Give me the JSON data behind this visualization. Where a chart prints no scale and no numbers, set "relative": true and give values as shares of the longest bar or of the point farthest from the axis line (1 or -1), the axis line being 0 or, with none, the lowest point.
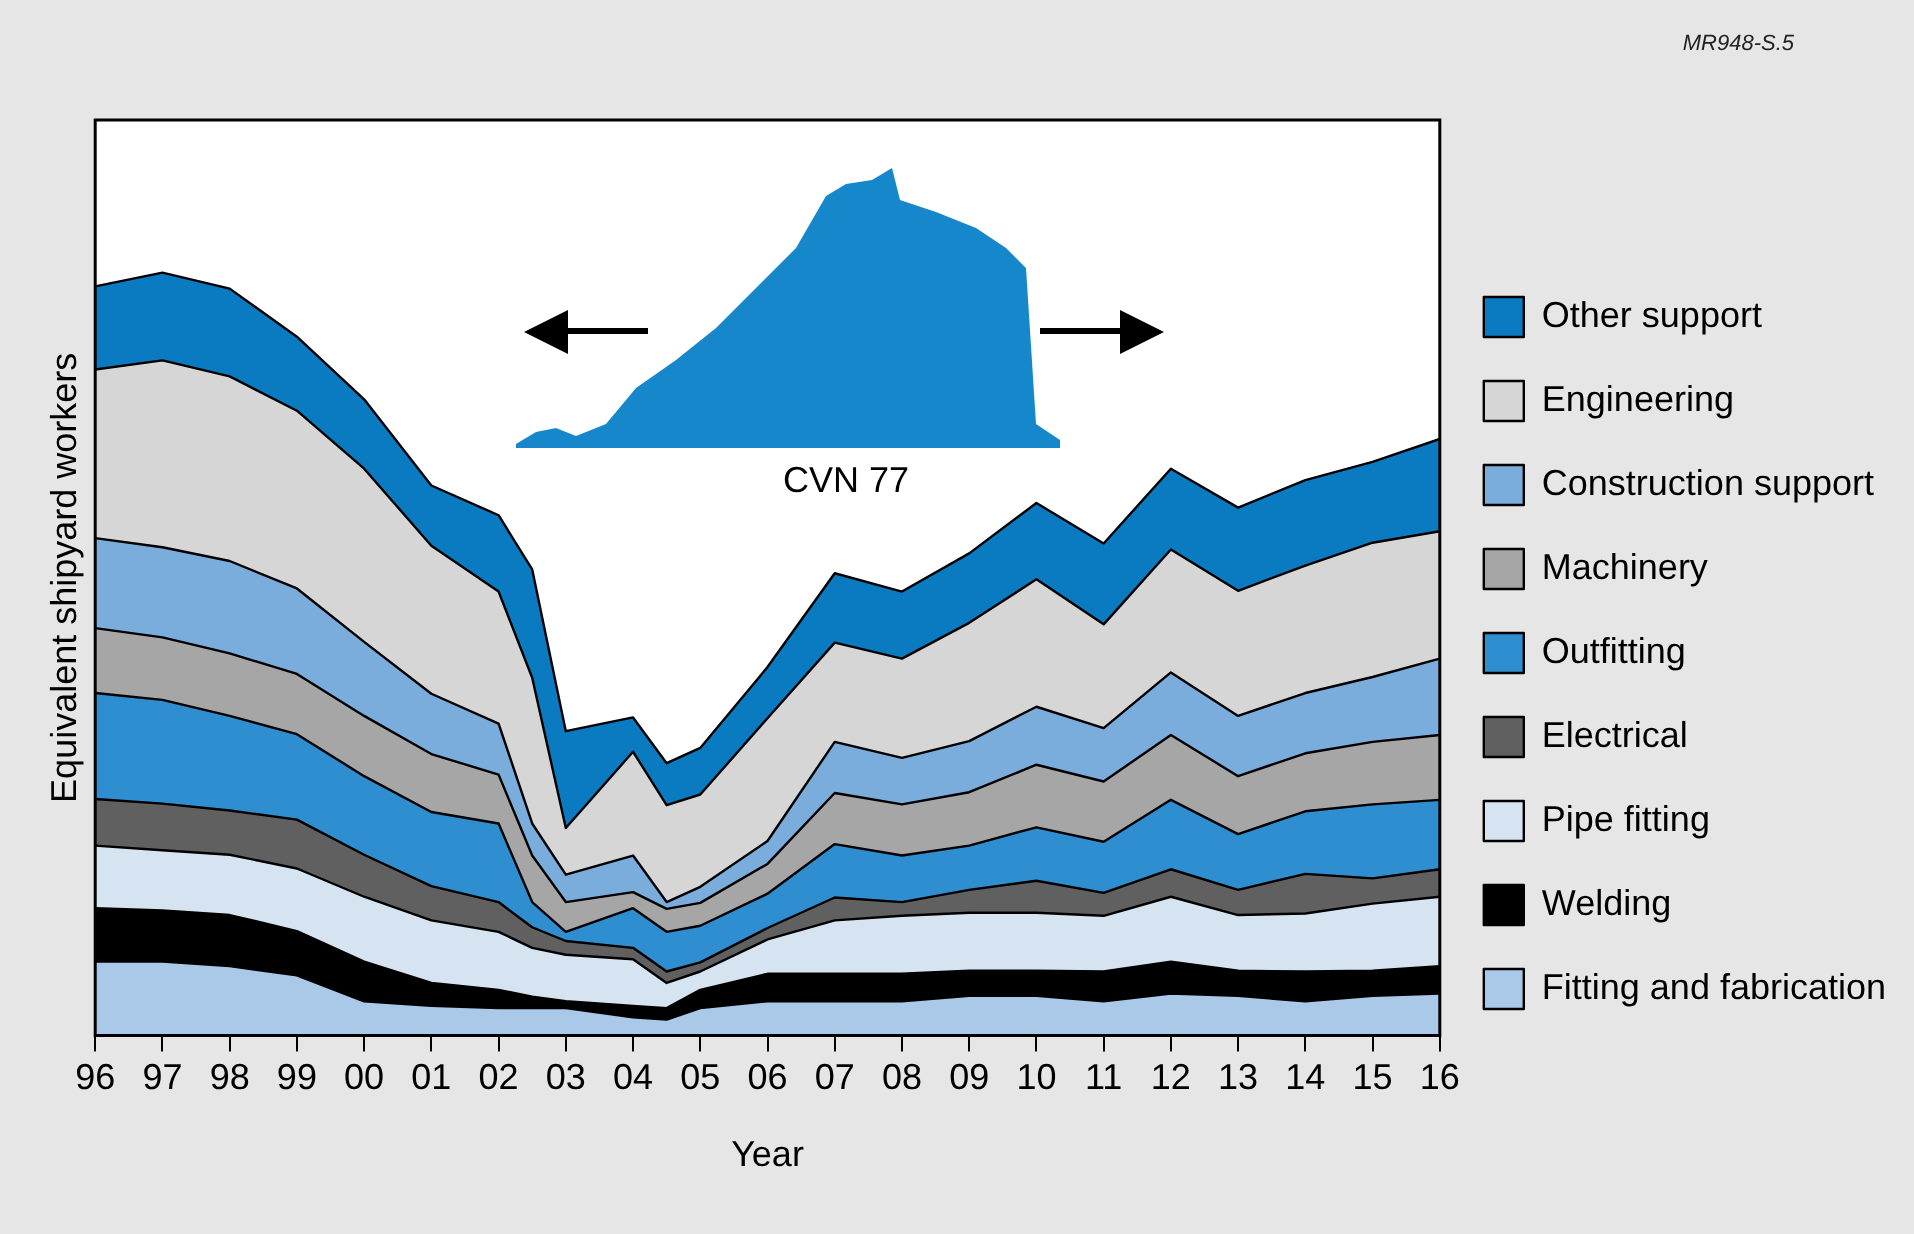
{
  "chart_data": {
    "type": "area",
    "stacked": true,
    "relative": true,
    "xlabel": "Year",
    "ylabel": "Equivalent shipyard workers",
    "legend": "right",
    "grid": false,
    "annotations": [
      "CVN 77",
      "MR948-S.5"
    ],
    "x": [
      1996,
      1997,
      1998,
      1999,
      2000,
      2001,
      2002,
      2002.5,
      2003,
      2004,
      2004.5,
      2005,
      2006,
      2007,
      2008,
      2009,
      2010,
      2011,
      2012,
      2013,
      2014,
      2015,
      2016
    ],
    "xlim": [
      1996,
      2016
    ],
    "xticks": [
      {
        "value": 1996,
        "label": "96"
      },
      {
        "value": 1997,
        "label": "97"
      },
      {
        "value": 1998,
        "label": "98"
      },
      {
        "value": 1999,
        "label": "99"
      },
      {
        "value": 2000,
        "label": "00"
      },
      {
        "value": 2001,
        "label": "01"
      },
      {
        "value": 2002,
        "label": "02"
      },
      {
        "value": 2003,
        "label": "03"
      },
      {
        "value": 2004,
        "label": "04"
      },
      {
        "value": 2005,
        "label": "05"
      },
      {
        "value": 2006,
        "label": "06"
      },
      {
        "value": 2007,
        "label": "07"
      },
      {
        "value": 2008,
        "label": "08"
      },
      {
        "value": 2009,
        "label": "09"
      },
      {
        "value": 2010,
        "label": "10"
      },
      {
        "value": 2011,
        "label": "11"
      },
      {
        "value": 2012,
        "label": "12"
      },
      {
        "value": 2013,
        "label": "13"
      },
      {
        "value": 2014,
        "label": "14"
      },
      {
        "value": 2015,
        "label": "15"
      },
      {
        "value": 2016,
        "label": "16"
      }
    ],
    "series": [
      {
        "name": "Fitting and fabrication",
        "color": "#aac8e8",
        "values": [
          0.097,
          0.097,
          0.091,
          0.079,
          0.045,
          0.039,
          0.036,
          0.036,
          0.036,
          0.024,
          0.021,
          0.036,
          0.045,
          0.045,
          0.045,
          0.052,
          0.052,
          0.045,
          0.055,
          0.052,
          0.045,
          0.052,
          0.055
        ]
      },
      {
        "name": "Welding",
        "color": "#000000",
        "values": [
          0.07,
          0.067,
          0.067,
          0.058,
          0.052,
          0.03,
          0.024,
          0.015,
          0.009,
          0.015,
          0.015,
          0.024,
          0.036,
          0.036,
          0.036,
          0.033,
          0.033,
          0.039,
          0.042,
          0.033,
          0.039,
          0.033,
          0.036
        ]
      },
      {
        "name": "Pipe fitting",
        "color": "#d6e4f2",
        "values": [
          0.082,
          0.079,
          0.079,
          0.082,
          0.085,
          0.082,
          0.076,
          0.064,
          0.061,
          0.061,
          0.033,
          0.024,
          0.045,
          0.07,
          0.076,
          0.076,
          0.076,
          0.073,
          0.085,
          0.073,
          0.076,
          0.088,
          0.091
        ]
      },
      {
        "name": "Electrical",
        "color": "#606060",
        "values": [
          0.061,
          0.061,
          0.058,
          0.064,
          0.055,
          0.045,
          0.039,
          0.027,
          0.018,
          0.015,
          0.015,
          0.012,
          0.015,
          0.03,
          0.018,
          0.03,
          0.042,
          0.03,
          0.036,
          0.033,
          0.052,
          0.033,
          0.036
        ]
      },
      {
        "name": "Outfitting",
        "color": "#2e8ecf",
        "values": [
          0.139,
          0.136,
          0.124,
          0.112,
          0.103,
          0.097,
          0.103,
          0.033,
          0.012,
          0.052,
          0.052,
          0.048,
          0.045,
          0.07,
          0.061,
          0.058,
          0.07,
          0.067,
          0.091,
          0.073,
          0.082,
          0.097,
          0.091
        ]
      },
      {
        "name": "Machinery",
        "color": "#a6a6a6",
        "values": [
          0.085,
          0.082,
          0.082,
          0.079,
          0.079,
          0.076,
          0.064,
          0.061,
          0.039,
          0.021,
          0.03,
          0.03,
          0.039,
          0.067,
          0.067,
          0.07,
          0.082,
          0.079,
          0.085,
          0.076,
          0.076,
          0.082,
          0.085
        ]
      },
      {
        "name": "Construction support",
        "color": "#7aacdc",
        "values": [
          0.118,
          0.118,
          0.121,
          0.112,
          0.097,
          0.079,
          0.067,
          0.042,
          0.036,
          0.048,
          0.009,
          0.021,
          0.03,
          0.067,
          0.061,
          0.067,
          0.076,
          0.07,
          0.082,
          0.079,
          0.079,
          0.085,
          0.1
        ]
      },
      {
        "name": "Engineering",
        "color": "#d6d6d6",
        "values": [
          0.221,
          0.245,
          0.242,
          0.233,
          0.227,
          0.194,
          0.173,
          0.191,
          0.061,
          0.136,
          0.127,
          0.121,
          0.161,
          0.13,
          0.13,
          0.155,
          0.167,
          0.136,
          0.161,
          0.164,
          0.167,
          0.176,
          0.167
        ]
      },
      {
        "name": "Other support",
        "color": "#0a7bc1",
        "values": [
          0.109,
          0.115,
          0.115,
          0.097,
          0.091,
          0.079,
          0.1,
          0.142,
          0.127,
          0.045,
          0.055,
          0.061,
          0.067,
          0.091,
          0.088,
          0.091,
          0.1,
          0.106,
          0.106,
          0.109,
          0.112,
          0.106,
          0.121
        ]
      }
    ]
  }
}
